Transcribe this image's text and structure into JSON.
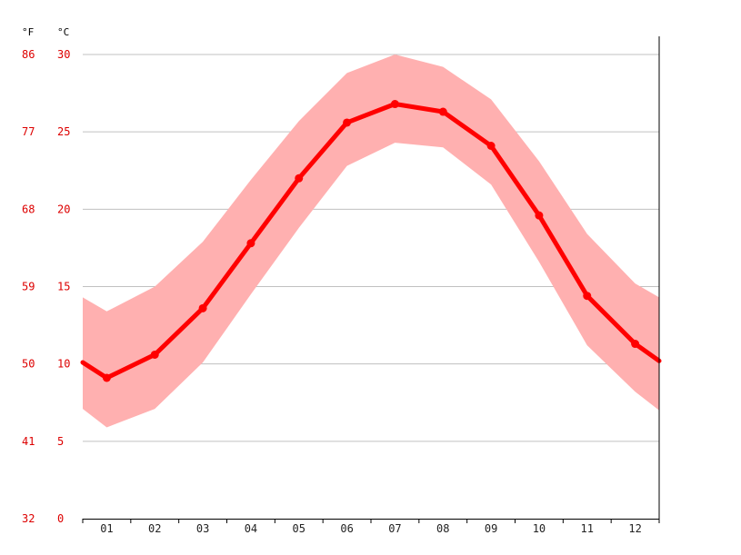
{
  "chart_data": {
    "type": "line",
    "title": "",
    "xlabel": "",
    "ylabel": "",
    "units": {
      "fahrenheit": "°F",
      "celsius": "°C"
    },
    "categories": [
      "01",
      "02",
      "03",
      "04",
      "05",
      "06",
      "07",
      "08",
      "09",
      "10",
      "11",
      "12"
    ],
    "ylim": [
      0,
      30
    ],
    "y_ticks_c": [
      "0",
      "5",
      "10",
      "15",
      "20",
      "25",
      "30"
    ],
    "y_ticks_f": [
      "32",
      "41",
      "50",
      "59",
      "68",
      "77",
      "86"
    ],
    "grid": true,
    "series": [
      {
        "role": "average",
        "values": [
          9.1,
          10.6,
          13.6,
          17.8,
          22.0,
          25.6,
          26.8,
          26.3,
          24.1,
          19.6,
          14.4,
          11.3
        ],
        "edge_start": 10.1,
        "edge_end": 10.2
      },
      {
        "role": "max",
        "values": [
          13.4,
          15.0,
          17.9,
          21.9,
          25.7,
          28.8,
          30.0,
          29.2,
          27.1,
          23.1,
          18.4,
          15.2
        ],
        "edge_start": 14.3,
        "edge_end": 14.3
      },
      {
        "role": "min",
        "values": [
          5.9,
          7.1,
          10.1,
          14.5,
          18.8,
          22.8,
          24.3,
          24.0,
          21.6,
          16.6,
          11.2,
          8.2
        ],
        "edge_start": 7.1,
        "edge_end": 7.0
      }
    ],
    "colors": {
      "line": "#ff0000",
      "band": "#ffb0b0",
      "grid": "#c0c0c0",
      "tick_text": "#dd0000",
      "axis": "#000000"
    }
  }
}
